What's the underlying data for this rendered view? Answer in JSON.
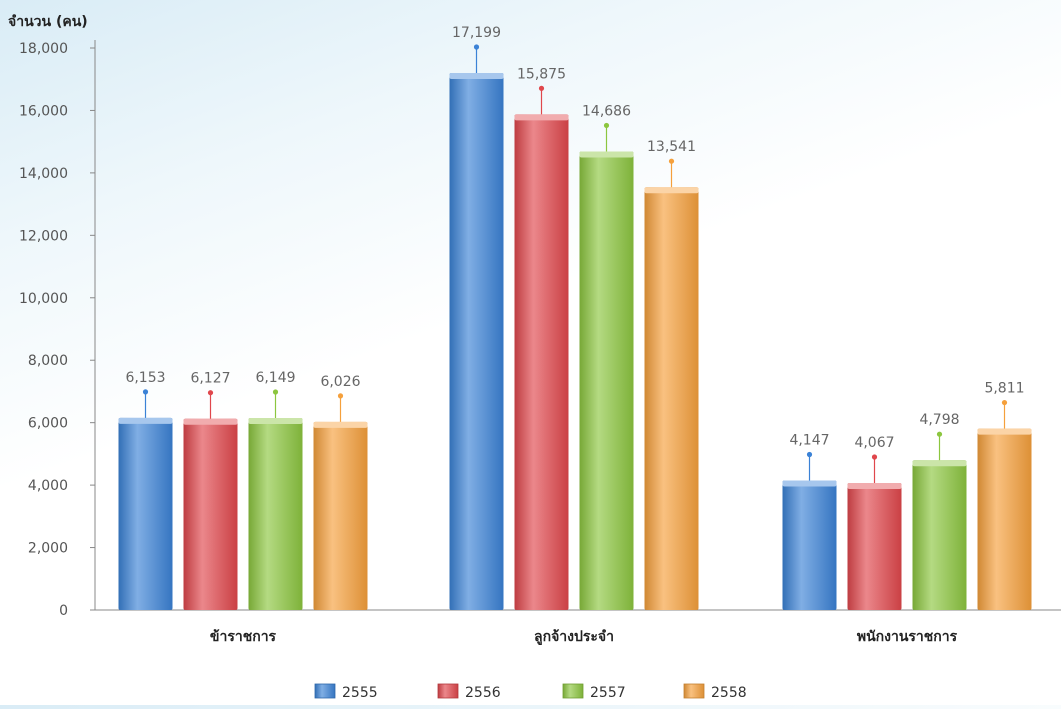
{
  "chart_data": {
    "type": "bar",
    "title": "",
    "xlabel": "",
    "ylabel": "จำนวน (คน)",
    "ylim": [
      0,
      18000
    ],
    "yticks": [
      0,
      2000,
      4000,
      6000,
      8000,
      10000,
      12000,
      14000,
      16000,
      18000
    ],
    "ytick_labels": [
      "0",
      "2,000",
      "4,000",
      "6,000",
      "8,000",
      "10,000",
      "12,000",
      "14,000",
      "16,000",
      "18,000"
    ],
    "categories": [
      "ข้าราชการ",
      "ลูกจ้างประจำ",
      "พนักงานราชการ"
    ],
    "series": [
      {
        "name": "2555",
        "color": "#3b82d6",
        "values": [
          6153,
          17199,
          4147
        ],
        "labels": [
          "6,153",
          "17,199",
          "4,147"
        ]
      },
      {
        "name": "2556",
        "color": "#e0474c",
        "values": [
          6127,
          15875,
          4067
        ],
        "labels": [
          "6,127",
          "15,875",
          "4,067"
        ]
      },
      {
        "name": "2557",
        "color": "#8cc63f",
        "values": [
          6149,
          14686,
          4798
        ],
        "labels": [
          "6,149",
          "14,686",
          "4,798"
        ]
      },
      {
        "name": "2558",
        "color": "#f5a03c",
        "values": [
          6026,
          13541,
          5811
        ],
        "labels": [
          "6,026",
          "13,541",
          "5,811"
        ]
      }
    ],
    "grid": false,
    "legend_position": "bottom-center"
  }
}
